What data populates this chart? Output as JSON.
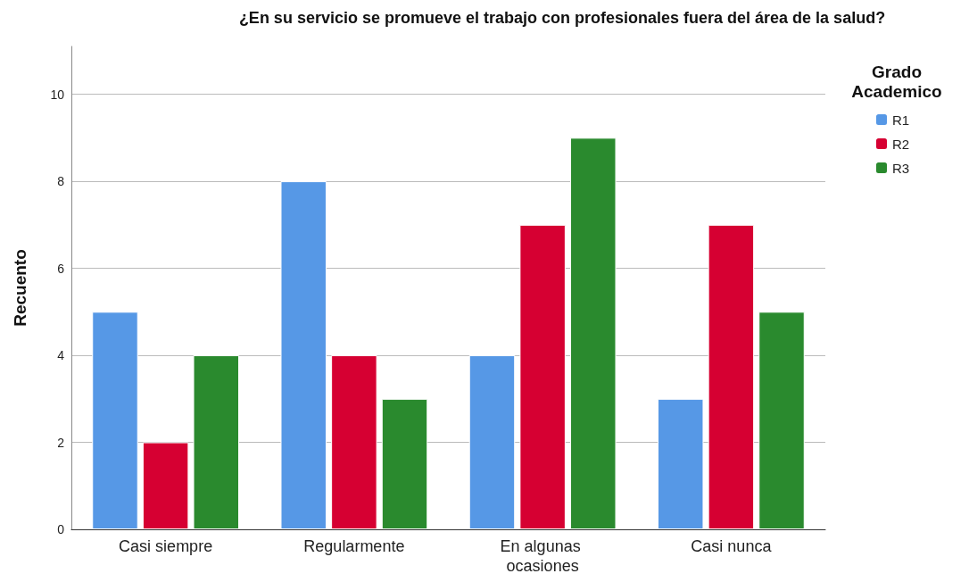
{
  "chart_data": {
    "type": "bar",
    "title": "¿En su servicio se promueve el trabajo con profesionales fuera del área de la salud?",
    "ylabel": "Recuento",
    "legend_title": "Grado Academico",
    "categories": [
      "Casi siempre",
      "Regularmente",
      "En algunas ocasiones",
      "Casi nunca"
    ],
    "series": [
      {
        "name": "R1",
        "color": "#5698e6",
        "values": [
          5,
          8,
          4,
          3
        ]
      },
      {
        "name": "R2",
        "color": "#d60032",
        "values": [
          2,
          4,
          7,
          7
        ]
      },
      {
        "name": "R3",
        "color": "#2a8a2e",
        "values": [
          4,
          3,
          9,
          5
        ]
      }
    ],
    "ylim": [
      0,
      11.1
    ],
    "yticks": [
      0,
      2,
      4,
      6,
      8,
      10
    ],
    "grid": "y",
    "legend": "top right"
  }
}
